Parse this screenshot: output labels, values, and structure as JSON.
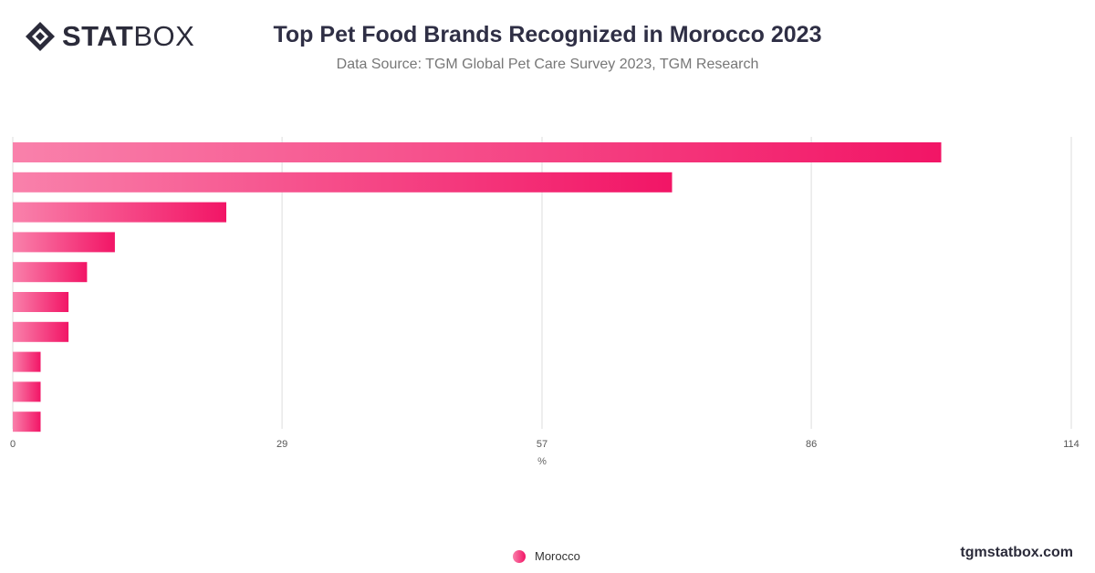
{
  "header": {
    "logo_bold": "STAT",
    "logo_light": "BOX",
    "title": "Top Pet Food Brands Recognized in Morocco 2023",
    "subtitle": "Data Source: TGM Global Pet Care Survey 2023, TGM Research"
  },
  "footer": {
    "site": "tgmstatbox.com"
  },
  "colors": {
    "bar_start": "#f981ab",
    "bar_end": "#f21566",
    "grid": "#dddddd",
    "text": "#333333"
  },
  "chart_data": {
    "type": "bar",
    "orientation": "horizontal",
    "xlabel": "%",
    "xlim": [
      0,
      114
    ],
    "ticks": [
      0,
      29,
      57,
      86,
      114
    ],
    "grid": true,
    "legend_position": "bottom-center",
    "series": [
      {
        "name": "Morocco",
        "values": [
          100,
          71,
          23,
          11,
          8,
          6,
          6,
          3,
          3,
          3
        ]
      }
    ]
  }
}
